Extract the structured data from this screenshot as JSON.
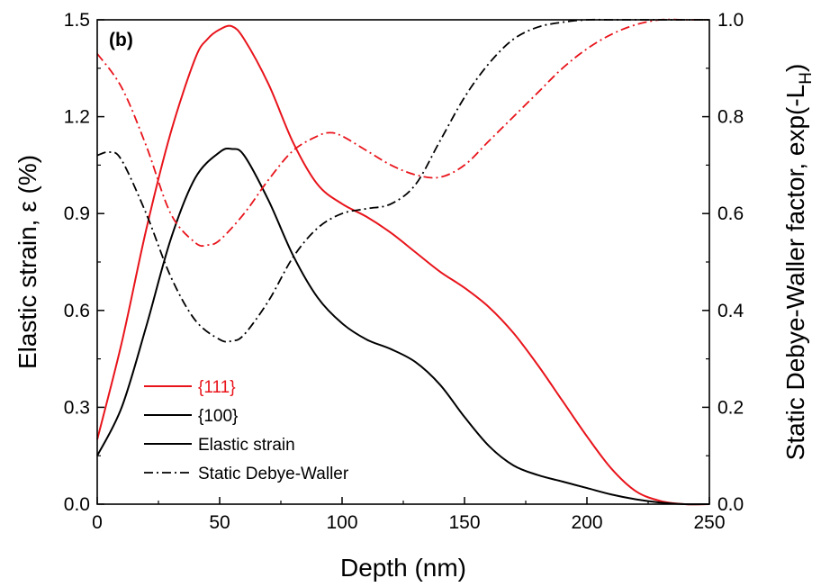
{
  "chart_data": {
    "type": "line",
    "panel_label": "(b)",
    "xlabel": "Depth (nm)",
    "ylabel": "Elastic strain, ε (%)",
    "ylabel_right": {
      "main": "Static Debye-Waller factor, exp(-L",
      "sub": "H",
      "close": ")"
    },
    "xlim": [
      0,
      250
    ],
    "ylim": [
      0,
      1.5
    ],
    "ylim_right": [
      0,
      1.0
    ],
    "x_ticks": [
      "0",
      "50",
      "100",
      "150",
      "200",
      "250"
    ],
    "y_ticks": [
      "0.0",
      "0.3",
      "0.6",
      "0.9",
      "1.2",
      "1.5"
    ],
    "y_ticks_right": [
      "0.0",
      "0.2",
      "0.4",
      "0.6",
      "0.8",
      "1.0"
    ],
    "colors": {
      "111": "#e8141b",
      "100": "#000000"
    },
    "legend": {
      "position": "lower-left",
      "entries": [
        {
          "label": "{111}",
          "color": "#e8141b",
          "style": "solid"
        },
        {
          "label": "{100}",
          "color": "#000000",
          "style": "solid"
        },
        {
          "label": "Elastic strain",
          "color": "#000000",
          "style": "solid"
        },
        {
          "label": "Static Debye-Waller",
          "color": "#000000",
          "style": "dashdot"
        }
      ]
    },
    "series": [
      {
        "family": "{111}",
        "quantity": "Elastic strain",
        "axis": "left",
        "color": "#e8141b",
        "style": "solid",
        "x": [
          0,
          10,
          20,
          30,
          40,
          45,
          50,
          55,
          60,
          70,
          80,
          90,
          100,
          110,
          120,
          130,
          140,
          150,
          160,
          170,
          180,
          190,
          200,
          210,
          220,
          230,
          240,
          250
        ],
        "y": [
          0.2,
          0.5,
          0.85,
          1.15,
          1.38,
          1.44,
          1.47,
          1.48,
          1.44,
          1.3,
          1.12,
          0.99,
          0.93,
          0.89,
          0.84,
          0.78,
          0.72,
          0.67,
          0.61,
          0.53,
          0.43,
          0.32,
          0.21,
          0.11,
          0.04,
          0.01,
          0.0,
          0.0
        ]
      },
      {
        "family": "{100}",
        "quantity": "Elastic strain",
        "axis": "left",
        "color": "#000000",
        "style": "solid",
        "x": [
          0,
          10,
          20,
          30,
          40,
          50,
          55,
          60,
          70,
          80,
          90,
          100,
          110,
          120,
          130,
          140,
          150,
          160,
          170,
          180,
          190,
          200,
          210,
          220,
          230,
          240,
          250
        ],
        "y": [
          0.15,
          0.3,
          0.55,
          0.82,
          1.01,
          1.09,
          1.1,
          1.08,
          0.94,
          0.77,
          0.64,
          0.56,
          0.51,
          0.48,
          0.44,
          0.37,
          0.27,
          0.18,
          0.12,
          0.09,
          0.07,
          0.05,
          0.03,
          0.015,
          0.005,
          0.0,
          0.0
        ]
      },
      {
        "family": "{111}",
        "quantity": "Static Debye-Waller",
        "axis": "right",
        "color": "#e8141b",
        "style": "dashdot",
        "x": [
          0,
          10,
          20,
          30,
          40,
          45,
          50,
          60,
          70,
          80,
          90,
          95,
          100,
          110,
          120,
          130,
          140,
          150,
          160,
          170,
          180,
          190,
          200,
          210,
          220,
          230,
          240,
          250
        ],
        "y": [
          0.93,
          0.86,
          0.74,
          0.6,
          0.54,
          0.535,
          0.545,
          0.6,
          0.67,
          0.73,
          0.76,
          0.767,
          0.76,
          0.73,
          0.7,
          0.68,
          0.675,
          0.7,
          0.75,
          0.8,
          0.85,
          0.9,
          0.94,
          0.97,
          0.99,
          1.0,
          1.0,
          1.0
        ]
      },
      {
        "family": "{100}",
        "quantity": "Static Debye-Waller",
        "axis": "right",
        "color": "#000000",
        "style": "dashdot",
        "x": [
          0,
          5,
          10,
          20,
          30,
          40,
          50,
          55,
          60,
          70,
          80,
          90,
          100,
          110,
          120,
          130,
          140,
          150,
          160,
          170,
          180,
          190,
          200,
          210,
          220,
          230,
          240,
          250
        ],
        "y": [
          0.72,
          0.727,
          0.71,
          0.6,
          0.47,
          0.38,
          0.34,
          0.337,
          0.35,
          0.42,
          0.51,
          0.57,
          0.6,
          0.61,
          0.62,
          0.66,
          0.75,
          0.84,
          0.91,
          0.96,
          0.985,
          0.995,
          1.0,
          1.0,
          1.0,
          1.0,
          1.0,
          1.0
        ]
      }
    ]
  }
}
